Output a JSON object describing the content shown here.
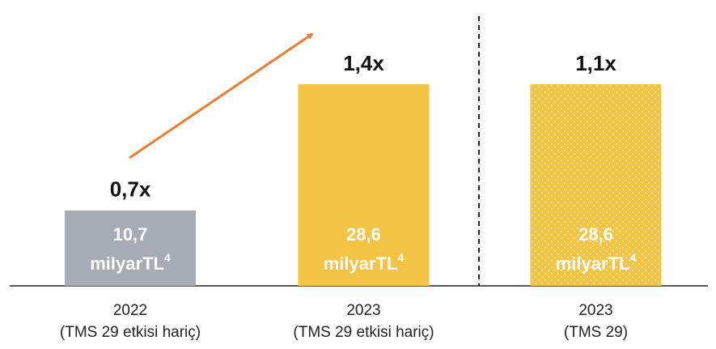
{
  "chart_data": {
    "type": "bar",
    "categories": [
      "2022",
      "2023",
      "2023"
    ],
    "category_notes": [
      "(TMS 29 etkisi hariç)",
      "(TMS 29 etkisi hariç)",
      "(TMS 29)"
    ],
    "values": [
      10.7,
      28.6,
      28.6
    ],
    "value_labels": [
      "10,7",
      "28,6",
      "28,6"
    ],
    "unit": "milyarTL",
    "unit_note": "4",
    "annotations": [
      "0,7x",
      "1,4x",
      "1,1x"
    ],
    "colors": [
      "#a7abb4",
      "#f3c343",
      "#f3c343"
    ],
    "styles": [
      "solid",
      "solid",
      "dotted"
    ]
  }
}
